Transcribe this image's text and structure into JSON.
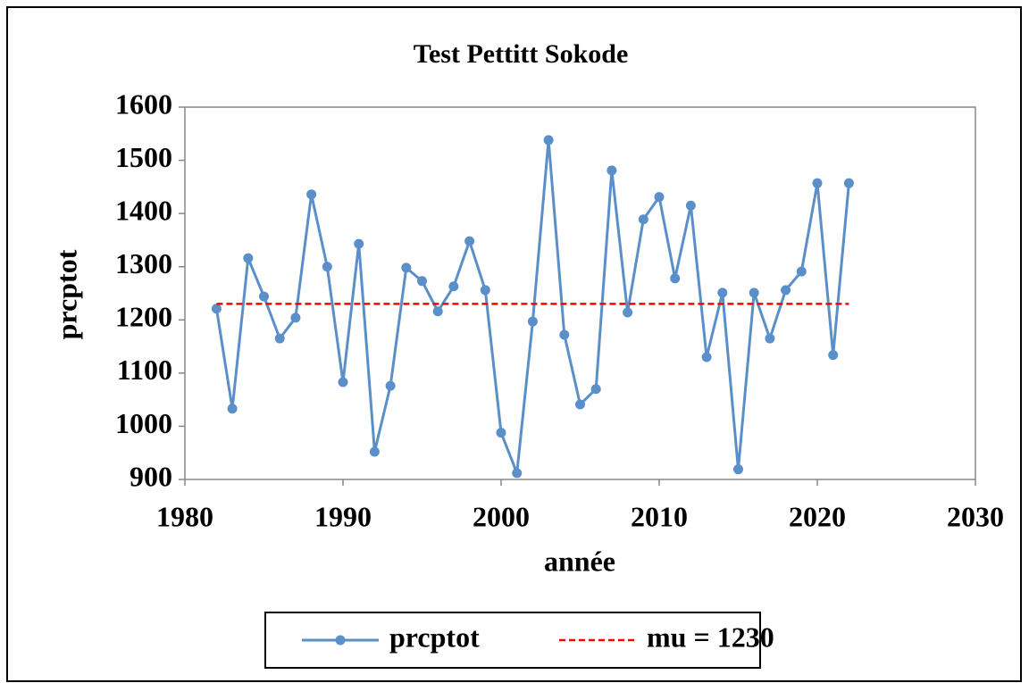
{
  "chart_data": {
    "type": "line",
    "title": "Test Pettitt Sokode",
    "xlabel": "année",
    "ylabel": "prcptot",
    "series": [
      {
        "name": "prcptot",
        "color": "#5b8fc9",
        "style": "solid-markers",
        "x": [
          1982,
          1983,
          1984,
          1985,
          1986,
          1987,
          1988,
          1989,
          1990,
          1991,
          1992,
          1993,
          1994,
          1995,
          1996,
          1997,
          1998,
          1999,
          2000,
          2001,
          2002,
          2003,
          2004,
          2005,
          2006,
          2007,
          2008,
          2009,
          2010,
          2011,
          2012,
          2013,
          2014,
          2015,
          2016,
          2017,
          2018,
          2019,
          2020,
          2021,
          2022
        ],
        "values": [
          1221,
          1033,
          1316,
          1244,
          1165,
          1204,
          1436,
          1300,
          1083,
          1343,
          952,
          1076,
          1298,
          1273,
          1216,
          1263,
          1348,
          1256,
          988,
          912,
          1197,
          1538,
          1172,
          1041,
          1070,
          1481,
          1214,
          1389,
          1431,
          1278,
          1415,
          1130,
          1251,
          919,
          1251,
          1165,
          1256,
          1291,
          1457,
          1134,
          1457
        ]
      },
      {
        "name": "mu = 1230",
        "color": "#ff0000",
        "style": "dashed",
        "x": [
          1982,
          2022
        ],
        "values": [
          1230,
          1230
        ]
      }
    ],
    "xlim": [
      1980,
      2030
    ],
    "xticks": [
      1980,
      1990,
      2000,
      2010,
      2020,
      2030
    ],
    "ylim": [
      900,
      1600
    ],
    "yticks": [
      900,
      1000,
      1100,
      1200,
      1300,
      1400,
      1500,
      1600
    ],
    "grid": false,
    "legend": "bottom"
  }
}
